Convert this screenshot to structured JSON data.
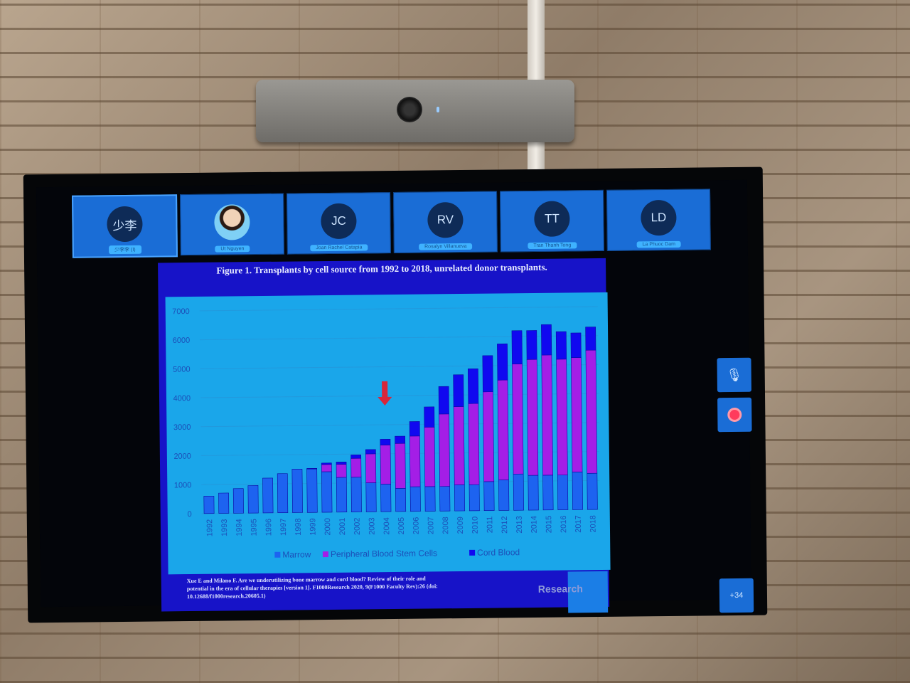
{
  "meeting": {
    "participants": [
      {
        "initials": "少李",
        "name": "少李李 (I)",
        "active": true
      },
      {
        "initials": "",
        "name": "Ut Nguyen",
        "photo": true
      },
      {
        "initials": "JC",
        "name": "Joan Rachel Catapia"
      },
      {
        "initials": "RV",
        "name": "Rosalyn Villanueva"
      },
      {
        "initials": "TT",
        "name": "Tran Thanh Tong"
      },
      {
        "initials": "LD",
        "name": "La Phuoc Dam"
      }
    ],
    "controls": {
      "mic_icon": "mic-off-icon",
      "record_icon": "record-icon",
      "more_count": "+34"
    },
    "logo_icon": "heart-logo-icon"
  },
  "slide": {
    "title": "Figure 1. Transplants by cell source from 1992 to 2018, unrelated donor transplants.",
    "citation": "Xue E and Milano F. Are we underutilizing bone marrow and cord blood? Review of their role and potential in the era of cellular therapies [version 1]. F1000Research 2020, 9(F1000 Faculty Rev):26 (doi: 10.12688/f1000research.20605.1)",
    "brand": "Research"
  },
  "chart_data": {
    "type": "bar",
    "stacked": true,
    "title": "Figure 1. Transplants by cell source from 1992 to 2018, unrelated donor transplants.",
    "categories": [
      "1992",
      "1993",
      "1994",
      "1995",
      "1996",
      "1997",
      "1998",
      "1999",
      "2000",
      "2001",
      "2002",
      "2003",
      "2004",
      "2005",
      "2006",
      "2007",
      "2008",
      "2009",
      "2010",
      "2011",
      "2012",
      "2013",
      "2014",
      "2015",
      "2016",
      "2017",
      "2018"
    ],
    "series": [
      {
        "name": "Marrow",
        "color": "#1d63f0",
        "values": [
          600,
          700,
          850,
          950,
          1200,
          1350,
          1500,
          1500,
          1400,
          1200,
          1200,
          1000,
          950,
          800,
          850,
          850,
          850,
          900,
          900,
          1000,
          1050,
          1250,
          1200,
          1200,
          1200,
          1300,
          1250
        ]
      },
      {
        "name": "Peripheral Blood Stem Cells",
        "color": "#a41ee6",
        "values": [
          0,
          0,
          0,
          0,
          0,
          0,
          0,
          0,
          250,
          450,
          650,
          1000,
          1350,
          1550,
          1750,
          2050,
          2500,
          2700,
          2800,
          3100,
          3450,
          3800,
          4000,
          4150,
          4000,
          3950,
          4250
        ]
      },
      {
        "name": "Cord Blood",
        "color": "#1008f0",
        "values": [
          0,
          0,
          0,
          0,
          0,
          0,
          0,
          20,
          50,
          80,
          120,
          150,
          200,
          250,
          500,
          700,
          950,
          1100,
          1200,
          1250,
          1250,
          1150,
          1000,
          1050,
          950,
          850,
          800
        ]
      }
    ],
    "ylim": [
      0,
      7000
    ],
    "yticks": [
      0,
      1000,
      2000,
      3000,
      4000,
      5000,
      6000,
      7000
    ],
    "grid": true,
    "legend": "bottom",
    "annotation": {
      "type": "red-down-arrow",
      "x": "2004"
    }
  }
}
